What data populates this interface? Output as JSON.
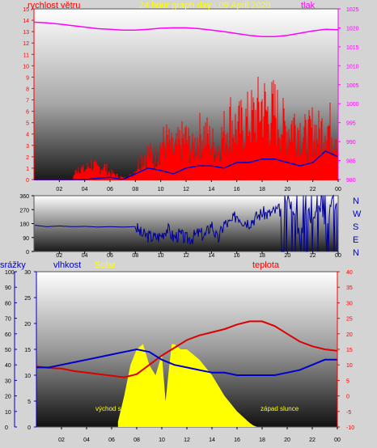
{
  "header": {
    "title": "24 hour graph day : 09 April 2020",
    "wind_label": "rychlost větru",
    "pressure_label": "tlak"
  },
  "panel1": {
    "wind_ticks": [
      "0",
      "1",
      "2",
      "3",
      "4",
      "5",
      "6",
      "7",
      "8",
      "9",
      "10",
      "11",
      "12",
      "13",
      "14",
      "15"
    ],
    "pressure_ticks": [
      "980",
      "985",
      "990",
      "995",
      "1000",
      "1005",
      "1010",
      "1015",
      "1020",
      "1025"
    ]
  },
  "panel2": {
    "direction_ticks": [
      "0",
      "90",
      "180",
      "270",
      "360"
    ],
    "compass": [
      "N",
      "W",
      "S",
      "E",
      "N"
    ]
  },
  "panel3": {
    "rain_label": "srážky",
    "humidity_label": "vlhkost",
    "solar_label": "Solar",
    "temp_label": "teplota",
    "sunrise_label": "východ s.",
    "sunset_label": "západ slunce",
    "rain_ticks": [
      "0",
      "10",
      "20",
      "30",
      "40",
      "50",
      "60",
      "70",
      "80",
      "90",
      "100"
    ],
    "humidity_ticks": [
      "0",
      "5",
      "10",
      "15",
      "20",
      "25",
      "30"
    ],
    "temp_ticks": [
      "-10",
      "-5",
      "0",
      "5",
      "10",
      "15",
      "20",
      "25",
      "30",
      "35",
      "40"
    ]
  },
  "time_axis": [
    "02",
    "04",
    "06",
    "08",
    "10",
    "12",
    "14",
    "16",
    "18",
    "20",
    "22",
    "00"
  ],
  "colors": {
    "wind": "#ff0000",
    "gust": "#ff0000",
    "wind_avg": "#0000cc",
    "pressure": "#ff00ff",
    "direction": "#000099",
    "humidity": "#0000cc",
    "temperature": "#dd0000",
    "solar": "#ffff00",
    "title": "#ffff00",
    "wind_label": "#ff0000",
    "pressure_label": "#ff00ff",
    "compass": "#0000cc",
    "rain_label": "#0000cc",
    "humidity_label": "#0000cc"
  },
  "chart_data": [
    {
      "type": "line",
      "title": "24 hour graph day : 09 April 2020",
      "x_unit": "hour",
      "xlim": [
        0,
        24
      ],
      "ylim": [
        0,
        15
      ],
      "y2lim": [
        980,
        1025
      ],
      "grid": false,
      "series": [
        {
          "name": "tlak",
          "axis": "right",
          "x": [
            0,
            1,
            2,
            3,
            4,
            5,
            6,
            7,
            8,
            9,
            10,
            11,
            12,
            13,
            14,
            15,
            16,
            17,
            18,
            19,
            20,
            21,
            22,
            23,
            24
          ],
          "values": [
            1021.5,
            1021.3,
            1021.0,
            1020.6,
            1020.2,
            1019.8,
            1019.6,
            1019.4,
            1019.4,
            1019.6,
            1019.9,
            1020.0,
            1020.0,
            1019.8,
            1019.4,
            1019.0,
            1018.5,
            1018.0,
            1017.7,
            1017.7,
            1018.0,
            1018.6,
            1019.2,
            1019.6,
            1019.5
          ]
        },
        {
          "name": "rychlost větru",
          "axis": "left",
          "x": [
            0,
            1,
            2,
            3,
            4,
            5,
            6,
            7,
            8,
            9,
            10,
            11,
            12,
            13,
            14,
            15,
            16,
            17,
            18,
            19,
            20,
            21,
            22,
            23,
            24
          ],
          "values": [
            0,
            0,
            0,
            0,
            0,
            0,
            0,
            0,
            0,
            0,
            0,
            0,
            0,
            0,
            0,
            0,
            0,
            0,
            0,
            0,
            0,
            0,
            0,
            0,
            0
          ]
        },
        {
          "axis": "left",
          "x": [
            0,
            1,
            2,
            3,
            3.5,
            4,
            4.5,
            5,
            5.5,
            6,
            6.5,
            7,
            7.5,
            8,
            8.5,
            9,
            9.5,
            10,
            10.5,
            11,
            11.5,
            12,
            12.5,
            13,
            13.5,
            14,
            14.5,
            15,
            15.5,
            16,
            16.5,
            17,
            17.5,
            18,
            18.5,
            19,
            19.5,
            20,
            20.5,
            21,
            21.5,
            22,
            22.5,
            23,
            23.5,
            24
          ],
          "values": [
            0,
            0,
            0,
            0,
            1.5,
            1.0,
            1.8,
            1.2,
            1.5,
            0.8,
            0.5,
            0.2,
            0.3,
            1.0,
            2.5,
            3.0,
            2.2,
            3.8,
            4.2,
            3.0,
            4.0,
            4.5,
            3.2,
            4.8,
            5.0,
            4.0,
            3.5,
            5.2,
            6.5,
            5.5,
            6.0,
            6.5,
            7.0,
            8.2,
            7.0,
            7.5,
            6.0,
            5.5,
            6.2,
            5.5,
            4.5,
            5.5,
            5.0,
            6.0,
            5.5,
            5.5
          ]
        },
        {
          "axis": "left",
          "x": [
            0,
            2,
            4,
            6,
            7,
            8,
            9,
            10,
            11,
            12,
            13,
            14,
            15,
            16,
            17,
            18,
            19,
            20,
            21,
            22,
            23,
            24
          ],
          "values": [
            0,
            0,
            0,
            0.2,
            0,
            0.5,
            1.0,
            0.8,
            0.5,
            1.0,
            1.2,
            1.2,
            1.0,
            1.5,
            1.5,
            1.8,
            1.8,
            1.5,
            1.2,
            1.5,
            2.5,
            2.0
          ]
        }
      ]
    },
    {
      "type": "line",
      "x_unit": "hour",
      "xlim": [
        0,
        24
      ],
      "ylim": [
        0,
        360
      ],
      "series": [
        {
          "x": [
            0,
            1,
            2,
            3,
            4,
            5,
            6,
            7,
            8,
            8.5,
            9,
            9.5,
            10,
            10.5,
            11,
            11.5,
            12,
            12.5,
            13,
            13.5,
            14,
            14.5,
            15,
            15.5,
            16,
            16.5,
            17,
            17.5,
            18,
            18.5,
            19,
            19.5,
            20,
            20.5,
            21,
            21.5,
            22,
            22.5,
            23,
            23.5,
            24
          ],
          "values": [
            170,
            160,
            165,
            160,
            162,
            158,
            160,
            158,
            160,
            110,
            100,
            90,
            100,
            150,
            90,
            110,
            80,
            90,
            120,
            100,
            180,
            70,
            180,
            180,
            240,
            200,
            190,
            220,
            250,
            240,
            260,
            270,
            310,
            280,
            60,
            300,
            180,
            300,
            100,
            360,
            240
          ]
        }
      ]
    },
    {
      "type": "line",
      "x_unit": "hour",
      "xlim": [
        0,
        24
      ],
      "ylim": [
        0,
        30
      ],
      "y2lim": [
        -10,
        40
      ],
      "grid": false,
      "annotations": [
        "východ s.",
        "západ slunce"
      ],
      "series": [
        {
          "name": "teplota",
          "axis": "right",
          "x": [
            0,
            1,
            2,
            3,
            4,
            5,
            6,
            7,
            8,
            9,
            10,
            11,
            12,
            13,
            14,
            15,
            16,
            17,
            18,
            19,
            20,
            21,
            22,
            23,
            24
          ],
          "values": [
            9.5,
            9.0,
            8.8,
            8.0,
            7.5,
            7.0,
            6.5,
            6.0,
            7.0,
            10.0,
            13.0,
            15.5,
            18.0,
            19.5,
            20.5,
            21.5,
            23.0,
            24.0,
            24.0,
            22.5,
            20.0,
            17.5,
            16.0,
            15.0,
            14.5
          ]
        },
        {
          "name": "vlhkost",
          "axis": "left",
          "x": [
            0,
            1,
            2,
            3,
            4,
            5,
            6,
            7,
            8,
            9,
            10,
            11,
            12,
            13,
            14,
            15,
            16,
            17,
            18,
            19,
            20,
            21,
            22,
            23,
            24
          ],
          "values": [
            11.5,
            11.5,
            12.0,
            12.5,
            13.0,
            13.5,
            14.0,
            14.5,
            15.0,
            14.5,
            13.0,
            12.0,
            11.5,
            11.0,
            10.5,
            10.5,
            10.0,
            10.0,
            10.0,
            10.0,
            10.5,
            11.0,
            12.0,
            13.0,
            13.0
          ]
        },
        {
          "name": "Solar",
          "x": [
            6.5,
            7,
            7.5,
            8,
            8.5,
            9,
            9.5,
            10,
            10.3,
            10.6,
            10.8,
            11,
            11.5,
            12,
            13,
            14,
            15,
            16,
            17,
            17.3,
            17.6
          ],
          "values": [
            1,
            6,
            12,
            15,
            16,
            12,
            10,
            14,
            5,
            12,
            16,
            16,
            15,
            15,
            13,
            10,
            6,
            3,
            0.8,
            0.3,
            0
          ]
        }
      ]
    }
  ]
}
